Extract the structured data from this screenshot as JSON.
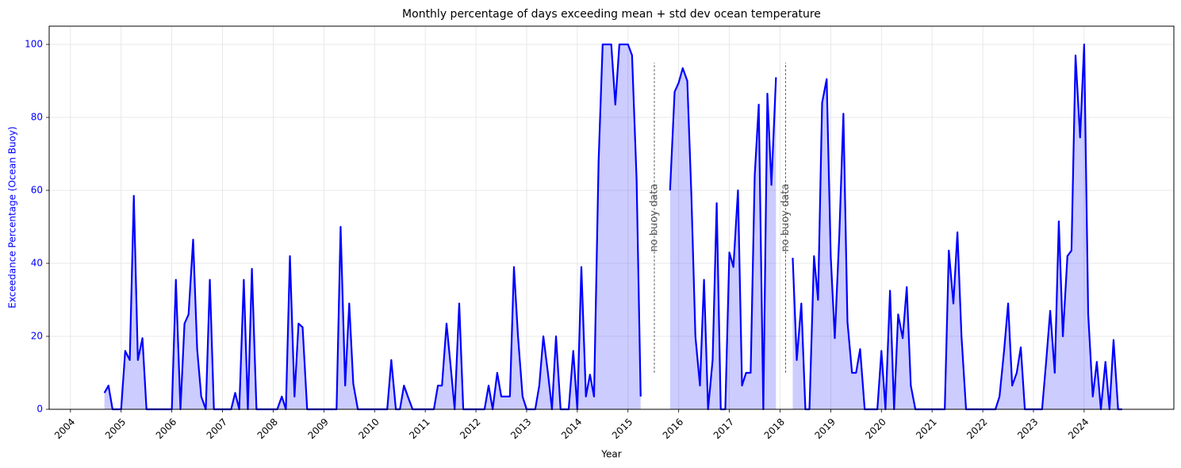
{
  "chart_data": {
    "type": "line",
    "title": "Monthly percentage of days exceeding mean + std dev ocean temperature",
    "xlabel": "Year",
    "ylabel": "Exceedance Percentage (Ocean Buoy)",
    "ylabel_color": "#0000ff",
    "xlim": [
      2003.58,
      2025.77
    ],
    "ylim": [
      0,
      105
    ],
    "xticks": [
      2004,
      2005,
      2006,
      2007,
      2008,
      2009,
      2010,
      2011,
      2012,
      2013,
      2014,
      2015,
      2016,
      2017,
      2018,
      2019,
      2020,
      2021,
      2022,
      2023,
      2024
    ],
    "yticks": [
      0,
      20,
      40,
      60,
      80,
      100
    ],
    "grid": true,
    "fill": true,
    "annotations": [
      {
        "text": "no buoy data",
        "x": 2015.52,
        "y": [
          10,
          95
        ]
      },
      {
        "text": "no buoy data",
        "x": 2018.11,
        "y": [
          10,
          95
        ]
      }
    ],
    "x": [
      2004.67,
      2004.75,
      2004.83,
      2004.92,
      2005,
      2005.08,
      2005.17,
      2005.25,
      2005.33,
      2005.42,
      2005.5,
      2005.58,
      2005.67,
      2005.75,
      2005.83,
      2005.92,
      2006,
      2006.08,
      2006.17,
      2006.25,
      2006.33,
      2006.42,
      2006.5,
      2006.58,
      2006.67,
      2006.75,
      2006.83,
      2006.92,
      2007,
      2007.08,
      2007.17,
      2007.25,
      2007.33,
      2007.42,
      2007.5,
      2007.58,
      2007.67,
      2007.75,
      2007.83,
      2007.92,
      2008,
      2008.08,
      2008.17,
      2008.25,
      2008.33,
      2008.42,
      2008.5,
      2008.58,
      2008.67,
      2008.75,
      2008.83,
      2008.92,
      2009,
      2009.08,
      2009.17,
      2009.25,
      2009.33,
      2009.42,
      2009.5,
      2009.58,
      2009.67,
      2009.75,
      2009.83,
      2009.92,
      2010,
      2010.08,
      2010.17,
      2010.25,
      2010.33,
      2010.42,
      2010.5,
      2010.58,
      2010.67,
      2010.75,
      2010.83,
      2010.92,
      2011,
      2011.08,
      2011.17,
      2011.25,
      2011.33,
      2011.42,
      2011.5,
      2011.58,
      2011.67,
      2011.75,
      2011.83,
      2011.92,
      2012,
      2012.08,
      2012.17,
      2012.25,
      2012.33,
      2012.42,
      2012.5,
      2012.58,
      2012.67,
      2012.75,
      2012.83,
      2012.92,
      2013,
      2013.08,
      2013.17,
      2013.25,
      2013.33,
      2013.42,
      2013.5,
      2013.58,
      2013.67,
      2013.75,
      2013.83,
      2013.92,
      2014,
      2014.08,
      2014.17,
      2014.25,
      2014.33,
      2014.42,
      2014.5,
      2014.58,
      2014.67,
      2014.75,
      2014.83,
      2014.92,
      2015,
      2015.08,
      2015.17,
      2015.25,
      2015.33,
      2015.42,
      2015.5,
      2015.58,
      2015.67,
      2015.75,
      2015.83,
      2015.92,
      2016,
      2016.08,
      2016.17,
      2016.25,
      2016.33,
      2016.42,
      2016.5,
      2016.58,
      2016.67,
      2016.75,
      2016.83,
      2016.92,
      2017,
      2017.08,
      2017.17,
      2017.25,
      2017.33,
      2017.42,
      2017.5,
      2017.58,
      2017.67,
      2017.75,
      2017.83,
      2017.92,
      2018,
      2018.08,
      2018.17,
      2018.25,
      2018.33,
      2018.42,
      2018.5,
      2018.58,
      2018.67,
      2018.75,
      2018.83,
      2018.92,
      2019,
      2019.08,
      2019.17,
      2019.25,
      2019.33,
      2019.42,
      2019.5,
      2019.58,
      2019.67,
      2019.75,
      2019.83,
      2019.92,
      2020,
      2020.08,
      2020.17,
      2020.25,
      2020.33,
      2020.42,
      2020.5,
      2020.58,
      2020.67,
      2020.75,
      2020.83,
      2020.92,
      2021,
      2021.08,
      2021.17,
      2021.25,
      2021.33,
      2021.42,
      2021.5,
      2021.58,
      2021.67,
      2021.75,
      2021.83,
      2021.92,
      2022,
      2022.08,
      2022.17,
      2022.25,
      2022.33,
      2022.42,
      2022.5,
      2022.58,
      2022.67,
      2022.75,
      2022.83,
      2022.92,
      2023,
      2023.08,
      2023.17,
      2023.25,
      2023.33,
      2023.42,
      2023.5,
      2023.58,
      2023.67,
      2023.75,
      2023.83,
      2023.92,
      2024,
      2024.08,
      2024.17,
      2024.25,
      2024.33,
      2024.42,
      2024.5,
      2024.58,
      2024.67,
      2024.75
    ],
    "series": [
      {
        "name": "Exceedance Percentage (Ocean Buoy)",
        "color": "#0000ff",
        "values": [
          4.5,
          6.5,
          0,
          0,
          0,
          16,
          13.5,
          58.5,
          13.5,
          19.5,
          0,
          0,
          0,
          0,
          0,
          0,
          0,
          35.5,
          0,
          23.5,
          26,
          46.5,
          16.5,
          3.5,
          0,
          35.5,
          0,
          0,
          0,
          0,
          0,
          4.5,
          0,
          35.5,
          0,
          38.5,
          0,
          0,
          0,
          0,
          0,
          0,
          3.5,
          0,
          42,
          3.5,
          23.5,
          22.5,
          0,
          0,
          0,
          0,
          0,
          0,
          0,
          0,
          50,
          6.5,
          29,
          7,
          0,
          0,
          0,
          0,
          0,
          0,
          0,
          0,
          13.5,
          0,
          0,
          6.5,
          3,
          0,
          0,
          0,
          0,
          0,
          0,
          6.5,
          6.5,
          23.5,
          12,
          0,
          29,
          0,
          0,
          0,
          0,
          0,
          0,
          6.5,
          0,
          10,
          3.5,
          3.5,
          3.5,
          39,
          20,
          3.5,
          0,
          0,
          0,
          6.5,
          20,
          10,
          0,
          20,
          0,
          0,
          0,
          16,
          0,
          39,
          3.5,
          9.5,
          3.5,
          68,
          100,
          100,
          100,
          83.5,
          100,
          100,
          100,
          97,
          63,
          3.5,
          null,
          null,
          null,
          null,
          null,
          null,
          60,
          87,
          89.5,
          93.5,
          90,
          59,
          20,
          6.5,
          35.5,
          0,
          13.5,
          56.5,
          0,
          0,
          43,
          39,
          60,
          6.5,
          10,
          10,
          64,
          83.5,
          0,
          86.5,
          61.5,
          91,
          null,
          null,
          null,
          41.5,
          13.5,
          29,
          0,
          0,
          42,
          30,
          84,
          90.5,
          42,
          19.5,
          48,
          81,
          24,
          10,
          10,
          16.5,
          0,
          0,
          0,
          0,
          16,
          0,
          32.5,
          0,
          26,
          19.5,
          33.5,
          6.5,
          0,
          0,
          0,
          0,
          0,
          0,
          0,
          0,
          43.5,
          29,
          48.5,
          20,
          0,
          0,
          0,
          0,
          0,
          0,
          0,
          0,
          3.5,
          16,
          29,
          6.5,
          10,
          17,
          0,
          0,
          0,
          0,
          0,
          13,
          27,
          10,
          51.5,
          20,
          42,
          43.5,
          97,
          74.5,
          100,
          26,
          3.5,
          13,
          0,
          13,
          0,
          19,
          0,
          0
        ]
      }
    ]
  }
}
